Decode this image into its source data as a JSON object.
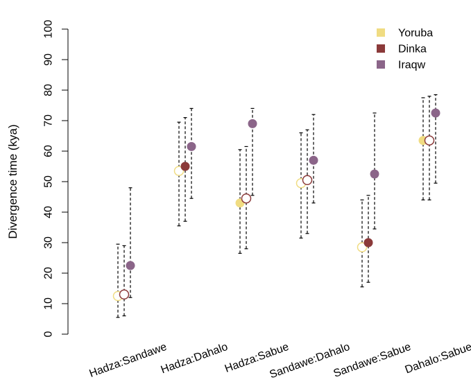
{
  "chart_data": {
    "type": "scatter",
    "subtype": "point-estimate-with-interval",
    "title": "",
    "xlabel": "",
    "ylabel": "Divergence time (kya)",
    "ylim": [
      0,
      100
    ],
    "yticks": [
      0,
      10,
      20,
      30,
      40,
      50,
      60,
      70,
      80,
      90,
      100
    ],
    "categories": [
      "Hadza:Sandawe",
      "Hadza:Dahalo",
      "Hadza:Sabue",
      "Sandawe:Dahalo",
      "Sandawe:Sabue",
      "Dahalo:Sabue"
    ],
    "legend_position": "top-right",
    "series": [
      {
        "name": "Yoruba",
        "color": "#F0DC82",
        "values": [
          12.5,
          53.5,
          43.0,
          49.5,
          28.5,
          63.5
        ],
        "lower": [
          5.5,
          35.5,
          26.5,
          31.5,
          15.5,
          44.0
        ],
        "upper": [
          29.5,
          69.5,
          60.5,
          66.0,
          44.0,
          77.5
        ],
        "filled": [
          false,
          false,
          true,
          false,
          false,
          true
        ]
      },
      {
        "name": "Dinka",
        "color": "#8B3A3A",
        "values": [
          13.0,
          55.0,
          44.5,
          50.5,
          30.0,
          63.5
        ],
        "lower": [
          6.0,
          37.0,
          28.0,
          33.0,
          17.0,
          44.0
        ],
        "upper": [
          29.0,
          71.0,
          61.5,
          67.0,
          45.5,
          78.0
        ],
        "filled": [
          false,
          true,
          false,
          false,
          true,
          false
        ]
      },
      {
        "name": "Iraqw",
        "color": "#8B6589",
        "values": [
          22.5,
          61.5,
          69.0,
          57.0,
          52.5,
          72.5
        ],
        "lower": [
          12.0,
          44.5,
          45.5,
          43.0,
          34.5,
          49.5
        ],
        "upper": [
          48.0,
          74.0,
          74.0,
          72.0,
          72.5,
          78.5
        ],
        "filled": [
          true,
          true,
          true,
          true,
          true,
          true
        ]
      }
    ]
  }
}
